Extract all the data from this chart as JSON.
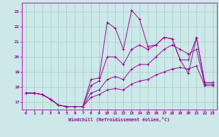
{
  "xlabel": "Windchill (Refroidissement éolien,°C)",
  "background_color": "#cce8e8",
  "grid_color": "#aacccc",
  "line_color": "#990099",
  "xlim": [
    -0.5,
    23.5
  ],
  "ylim": [
    16.5,
    23.6
  ],
  "xticks": [
    0,
    1,
    2,
    3,
    4,
    5,
    6,
    7,
    8,
    9,
    10,
    11,
    12,
    13,
    14,
    15,
    16,
    17,
    18,
    19,
    20,
    21,
    22,
    23
  ],
  "yticks": [
    17,
    18,
    19,
    20,
    21,
    22,
    23
  ],
  "series": {
    "line1": {
      "x": [
        0,
        1,
        2,
        3,
        4,
        5,
        6,
        7,
        8,
        9,
        10,
        11,
        12,
        13,
        14,
        15,
        16,
        17,
        18,
        19,
        20,
        21,
        22,
        23
      ],
      "y": [
        17.6,
        17.6,
        17.5,
        17.2,
        16.8,
        16.7,
        16.7,
        16.7,
        18.5,
        18.6,
        22.3,
        21.9,
        20.5,
        23.1,
        22.5,
        20.7,
        20.8,
        21.3,
        21.2,
        19.8,
        18.9,
        21.3,
        18.3,
        18.3
      ]
    },
    "line2": {
      "x": [
        0,
        1,
        2,
        3,
        4,
        5,
        6,
        7,
        8,
        9,
        10,
        11,
        12,
        13,
        14,
        15,
        16,
        17,
        18,
        19,
        20,
        21,
        22,
        23
      ],
      "y": [
        17.6,
        17.6,
        17.5,
        17.2,
        16.8,
        16.7,
        16.7,
        16.7,
        18.1,
        18.4,
        20.0,
        20.0,
        19.5,
        20.5,
        20.8,
        20.5,
        20.8,
        21.3,
        21.2,
        19.8,
        19.8,
        21.3,
        18.3,
        18.3
      ]
    },
    "line3": {
      "x": [
        0,
        1,
        2,
        3,
        4,
        5,
        6,
        7,
        8,
        9,
        10,
        11,
        12,
        13,
        14,
        15,
        16,
        17,
        18,
        19,
        20,
        21,
        22,
        23
      ],
      "y": [
        17.6,
        17.6,
        17.5,
        17.2,
        16.8,
        16.7,
        16.7,
        16.7,
        17.6,
        17.8,
        18.5,
        18.7,
        18.5,
        19.2,
        19.5,
        19.5,
        20.0,
        20.5,
        20.8,
        20.5,
        20.2,
        20.5,
        18.2,
        18.2
      ]
    },
    "line4": {
      "x": [
        0,
        1,
        2,
        3,
        4,
        5,
        6,
        7,
        8,
        9,
        10,
        11,
        12,
        13,
        14,
        15,
        16,
        17,
        18,
        19,
        20,
        21,
        22,
        23
      ],
      "y": [
        17.6,
        17.6,
        17.5,
        17.2,
        16.8,
        16.7,
        16.7,
        16.7,
        17.3,
        17.5,
        17.8,
        17.9,
        17.8,
        18.2,
        18.4,
        18.5,
        18.8,
        19.0,
        19.2,
        19.3,
        19.2,
        19.4,
        18.1,
        18.1
      ]
    }
  }
}
